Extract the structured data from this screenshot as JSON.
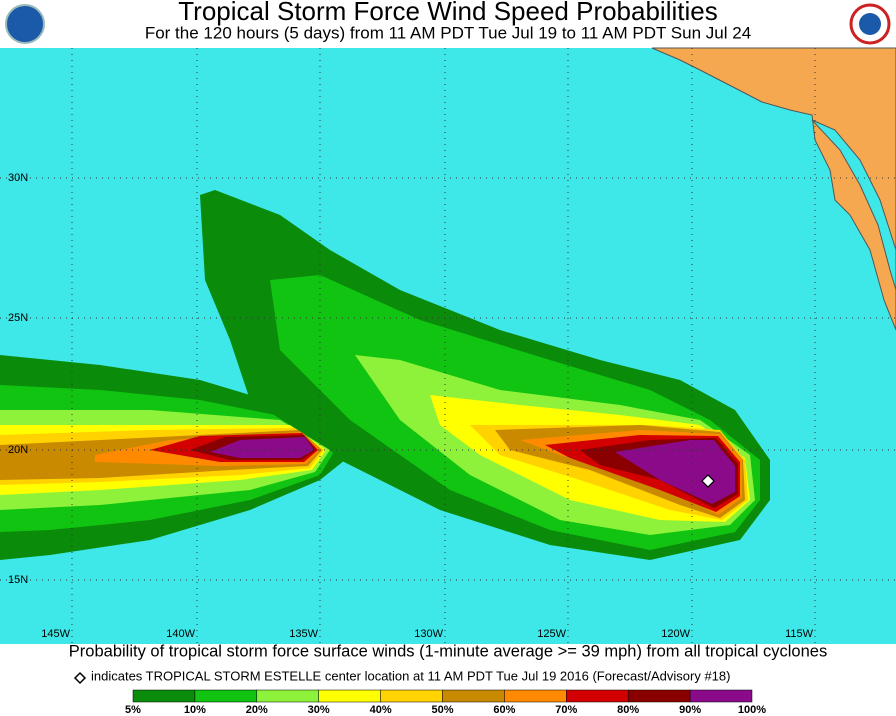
{
  "header": {
    "title": "Tropical Storm Force Wind Speed Probabilities",
    "subtitle": "For the 120 hours (5 days) from 11 AM PDT Tue Jul 19 to 11 AM PDT Sun Jul 24"
  },
  "map": {
    "lat_labels": [
      "30N",
      "25N",
      "20N",
      "15N"
    ],
    "lon_labels": [
      "145W",
      "140W",
      "135W",
      "130W",
      "125W",
      "120W",
      "115W"
    ]
  },
  "caption": {
    "line1": "Probability of tropical storm force surface winds (1-minute average >= 39 mph) from all tropical cyclones",
    "line2": "indicates TROPICAL STORM ESTELLE center location at 11 AM PDT Tue Jul 19 2016 (Forecast/Advisory #18)"
  },
  "colorbar": {
    "labels": [
      "5%",
      "10%",
      "20%",
      "30%",
      "40%",
      "50%",
      "60%",
      "70%",
      "80%",
      "90%",
      "100%"
    ],
    "colors": [
      "#0a8c0a",
      "#11c411",
      "#8ef23a",
      "#ffff00",
      "#ffd200",
      "#c98a00",
      "#ff8a00",
      "#d20000",
      "#8a0000",
      "#8a0a8a"
    ]
  }
}
